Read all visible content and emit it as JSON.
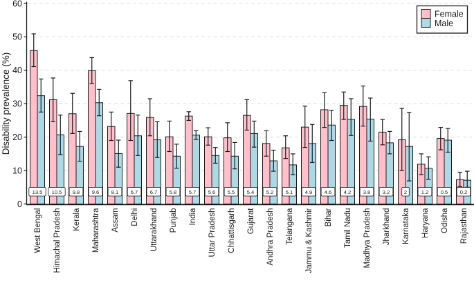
{
  "chart_data": {
    "type": "bar",
    "title": "",
    "xlabel": "",
    "ylabel": "Disability prevalence (%)",
    "ylim": [
      0,
      60
    ],
    "yticks": [
      0,
      10,
      20,
      30,
      40,
      50,
      60
    ],
    "grid": "horizontal dashed light-gray",
    "legend_position": "top-right",
    "error_bars": true,
    "categories": [
      "West Bengal",
      "Himachal Pradesh",
      "Kerala",
      "Maharashtra",
      "Assam",
      "Delhi",
      "Uttarakhand",
      "Punjab",
      "India",
      "Uttar Pradesh",
      "Chhattisgarh",
      "Gujarat",
      "Andhra Pradesh",
      "Telangana",
      "Jammu & Kashmir",
      "Bihar",
      "Tamil Nadu",
      "Madhya Pradesh",
      "Jharkhand",
      "Karnataka",
      "Haryana",
      "Odisha",
      "Rajasthan"
    ],
    "series": [
      {
        "name": "Female",
        "color": "#ffc0cb",
        "values": [
          45.9,
          31.2,
          27.0,
          39.9,
          23.2,
          27.1,
          25.9,
          20.1,
          26.3,
          20.1,
          19.8,
          26.5,
          18.1,
          16.8,
          23.0,
          28.2,
          29.5,
          29.2,
          21.5,
          19.2,
          11.9,
          19.6,
          7.3
        ],
        "err_low": [
          41.1,
          24.6,
          21.1,
          36.0,
          19.0,
          19.0,
          20.4,
          15.7,
          25.0,
          17.6,
          15.7,
          22.1,
          14.3,
          13.6,
          16.9,
          22.9,
          25.3,
          23.3,
          17.7,
          10.0,
          8.8,
          16.2,
          5.2
        ],
        "err_high": [
          50.9,
          37.7,
          33.1,
          43.8,
          27.5,
          36.9,
          31.5,
          24.8,
          27.6,
          22.8,
          24.3,
          31.2,
          21.9,
          20.4,
          29.3,
          33.3,
          33.5,
          35.3,
          25.3,
          28.6,
          15.0,
          22.9,
          9.5
        ]
      },
      {
        "name": "Male",
        "color": "#add8e6",
        "values": [
          32.4,
          20.7,
          17.2,
          30.3,
          15.1,
          20.4,
          19.2,
          14.3,
          20.6,
          14.5,
          14.3,
          21.1,
          12.9,
          11.7,
          18.1,
          23.6,
          25.3,
          25.4,
          18.3,
          17.2,
          10.7,
          19.1,
          7.1
        ],
        "err_low": [
          27.5,
          14.8,
          12.8,
          26.4,
          11.0,
          14.5,
          13.9,
          10.7,
          19.3,
          12.2,
          10.5,
          17.0,
          9.8,
          8.8,
          12.4,
          19.0,
          20.5,
          18.8,
          15.0,
          6.9,
          7.4,
          15.5,
          5.0
        ],
        "err_high": [
          37.4,
          26.6,
          21.7,
          34.3,
          19.1,
          26.6,
          24.6,
          17.9,
          21.9,
          16.9,
          18.4,
          24.8,
          16.1,
          15.0,
          23.8,
          28.0,
          31.5,
          31.7,
          21.7,
          27.4,
          14.1,
          22.6,
          9.8
        ]
      }
    ],
    "gap_labels": [
      "13.5",
      "10.5",
      "9.8",
      "9.6",
      "8.1",
      "6.7",
      "6.7",
      "5.8",
      "5.7",
      "5.6",
      "5.5",
      "5.4",
      "5.2",
      "5.1",
      "4.9",
      "4.6",
      "4.2",
      "3.8",
      "3.2",
      "2",
      "1.2",
      "0.5",
      "0.2"
    ],
    "colors": {
      "axis": "#1a1a1a",
      "gridline": "#dcdcdc",
      "error_bar": "#1a1a1a",
      "value_box_fill": "#ffffff"
    }
  }
}
